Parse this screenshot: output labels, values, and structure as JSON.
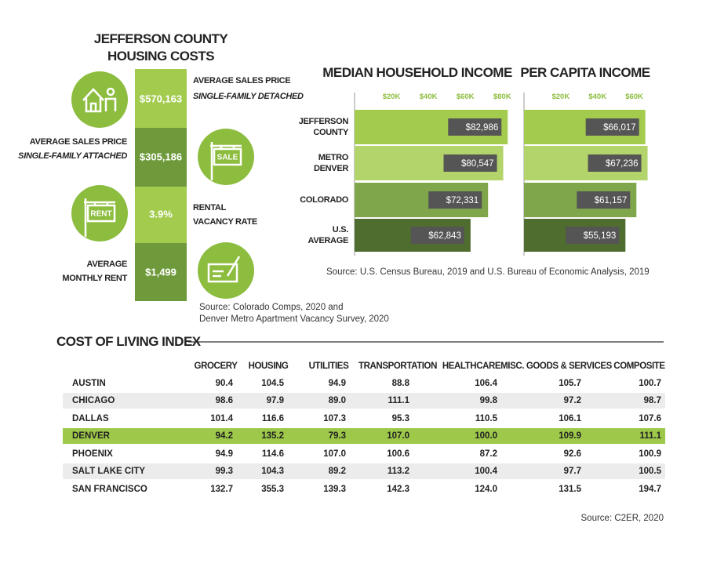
{
  "housing": {
    "title": [
      "JEFFERSON COUNTY",
      "HOUSING COSTS"
    ],
    "items": [
      {
        "value": "$570,163",
        "label": "AVERAGE SALES PRICE",
        "sublabel": "SINGLE-FAMILY DETACHED"
      },
      {
        "value": "$305,186",
        "label": "AVERAGE SALES PRICE",
        "sublabel": "SINGLE-FAMILY ATTACHED",
        "icon_text": "SALE"
      },
      {
        "value": "3.9%",
        "label": "RENTAL",
        "sublabel": "VACANCY RATE",
        "icon_text": "RENT"
      },
      {
        "value": "$1,499",
        "label": "AVERAGE",
        "sublabel": "MONTHLY RENT"
      }
    ],
    "source": [
      "Source: Colorado Comps, 2020 and",
      "Denver Metro Apartment Vacancy Survey, 2020"
    ]
  },
  "chart_data": [
    {
      "type": "bar",
      "title": "MEDIAN HOUSEHOLD INCOME",
      "categories": [
        "JEFFERSON COUNTY",
        "METRO DENVER",
        "COLORADO",
        "U.S. AVERAGE"
      ],
      "values": [
        82986,
        80547,
        72331,
        62843
      ],
      "value_labels": [
        "$82,986",
        "$80,547",
        "$72,331",
        "$62,843"
      ],
      "colors": [
        "#a3cc4f",
        "#b3d36b",
        "#7fa64a",
        "#4e6d2e"
      ],
      "xlim": [
        0,
        85000
      ],
      "xticks": [
        {
          "value": 20000,
          "label": "$20K"
        },
        {
          "value": 40000,
          "label": "$40K"
        },
        {
          "value": 60000,
          "label": "$60K"
        },
        {
          "value": 80000,
          "label": "$80K"
        }
      ]
    },
    {
      "type": "bar",
      "title": "PER CAPITA INCOME",
      "values": [
        66017,
        67236,
        61157,
        55193
      ],
      "value_labels": [
        "$66,017",
        "$67,236",
        "$61,157",
        "$55,193"
      ],
      "colors": [
        "#a3cc4f",
        "#b3d36b",
        "#7fa64a",
        "#4e6d2e"
      ],
      "xlim": [
        0,
        70000
      ],
      "xticks": [
        {
          "value": 20000,
          "label": "$20K"
        },
        {
          "value": 40000,
          "label": "$40K"
        },
        {
          "value": 60000,
          "label": "$60K"
        }
      ]
    }
  ],
  "chart_source": "Source: U.S. Census Bureau, 2019 and U.S. Bureau of Economic Analysis, 2019",
  "cost_of_living": {
    "title": "COST OF LIVING INDEX",
    "columns": [
      "GROCERY",
      "HOUSING",
      "UTILITIES",
      "TRANSPORTATION",
      "HEALTHCARE",
      "MISC. GOODS & SERVICES",
      "COMPOSITE"
    ],
    "rows": [
      [
        "AUSTIN",
        "90.4",
        "104.5",
        "94.9",
        "88.8",
        "106.4",
        "105.7",
        "100.7"
      ],
      [
        "CHICAGO",
        "98.6",
        "97.9",
        "89.0",
        "111.1",
        "99.8",
        "97.2",
        "98.7"
      ],
      [
        "DALLAS",
        "101.4",
        "116.6",
        "107.3",
        "95.3",
        "110.5",
        "106.1",
        "107.6"
      ],
      [
        "DENVER",
        "94.2",
        "135.2",
        "79.3",
        "107.0",
        "100.0",
        "109.9",
        "111.1"
      ],
      [
        "PHOENIX",
        "94.9",
        "114.6",
        "107.0",
        "100.6",
        "87.2",
        "92.6",
        "100.9"
      ],
      [
        "SALT LAKE CITY",
        "99.3",
        "104.3",
        "89.2",
        "113.2",
        "100.4",
        "97.7",
        "100.5"
      ],
      [
        "SAN FRANCISCO",
        "132.7",
        "355.3",
        "139.3",
        "142.3",
        "124.0",
        "131.5",
        "194.7"
      ]
    ],
    "highlight_row": 3,
    "highlight_color": "#9dc84a",
    "source": "Source: C2ER, 2020"
  }
}
